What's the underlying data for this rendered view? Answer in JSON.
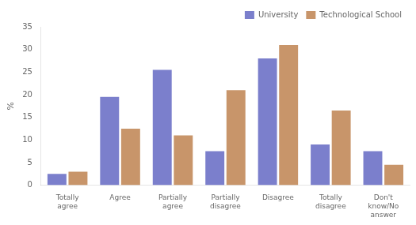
{
  "chart_data": {
    "type": "bar",
    "categories": [
      "Totally\nagree",
      "Agree",
      "Partially\nagree",
      "Partially\ndisagree",
      "Disagree",
      "Totally\ndisagree",
      "Don't\nknow/No\nanswer"
    ],
    "series": [
      {
        "name": "University",
        "color": "#7B7FCC",
        "values": [
          2.5,
          19.5,
          25.5,
          7.5,
          28.0,
          9.0,
          7.5
        ]
      },
      {
        "name": "Technological School",
        "color": "#C8956A",
        "values": [
          3.0,
          12.5,
          11.0,
          21.0,
          31.0,
          16.5,
          4.5
        ]
      }
    ],
    "y_label": "%",
    "ylim": [
      0,
      35
    ],
    "yticks": [
      0,
      5,
      10,
      15,
      20,
      25,
      30,
      35
    ],
    "grid": false,
    "legend": "upper right"
  }
}
